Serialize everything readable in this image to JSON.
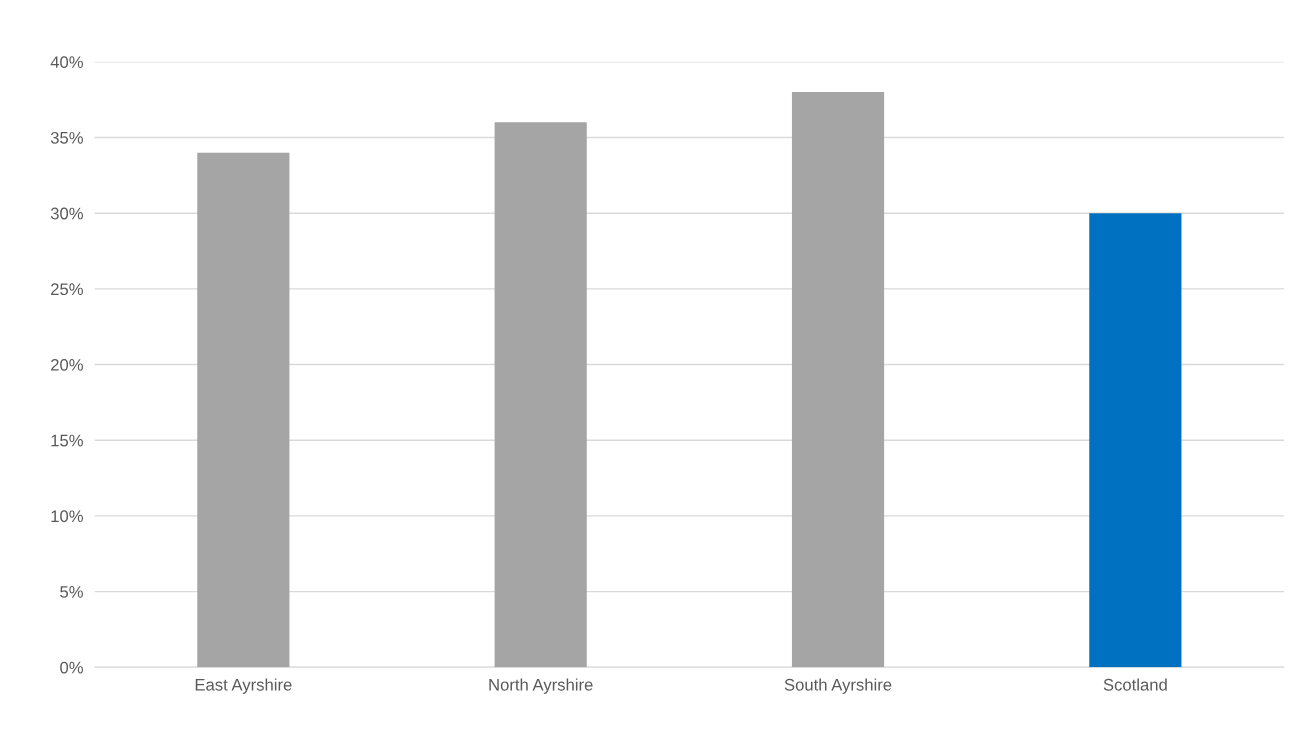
{
  "chart_data": {
    "type": "bar",
    "categories": [
      "East Ayrshire",
      "North Ayrshire",
      "South Ayrshire",
      "Scotland"
    ],
    "values": [
      34,
      36,
      38,
      30
    ],
    "colors": [
      "#a5a5a5",
      "#a5a5a5",
      "#a5a5a5",
      "#0070c0"
    ],
    "ylim": [
      0,
      40
    ],
    "yticks": [
      {
        "value": 0,
        "label": "0%"
      },
      {
        "value": 5,
        "label": "5%"
      },
      {
        "value": 10,
        "label": "10%"
      },
      {
        "value": 15,
        "label": "15%"
      },
      {
        "value": 20,
        "label": "20%"
      },
      {
        "value": 25,
        "label": "25%"
      },
      {
        "value": 30,
        "label": "30%"
      },
      {
        "value": 35,
        "label": "35%"
      },
      {
        "value": 40,
        "label": "40%"
      }
    ],
    "grid": "y"
  }
}
